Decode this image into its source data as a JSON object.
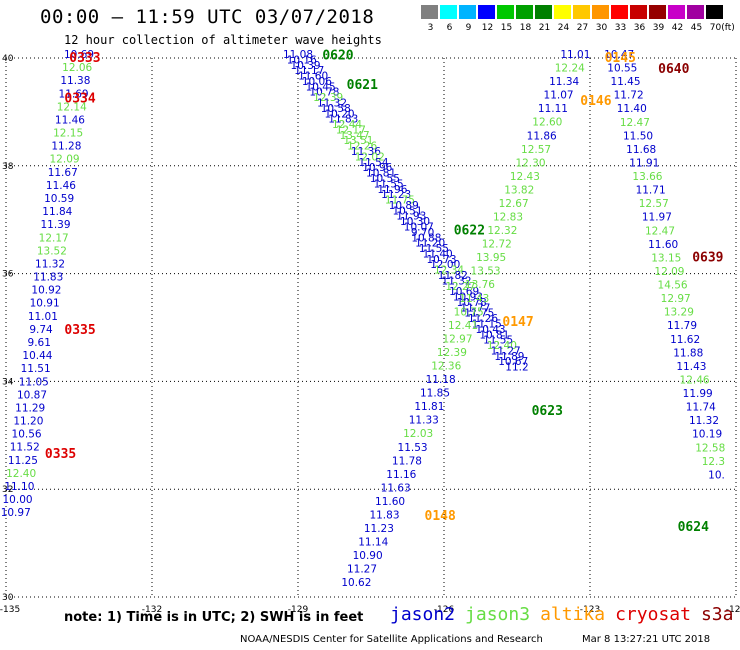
{
  "header": {
    "title": "00:00 – 11:59 UTC 03/07/2018",
    "subtitle": "12 hour collection of altimeter wave heights"
  },
  "color_scale": {
    "unit": "(ft)",
    "labels": [
      "3",
      "6",
      "9",
      "12",
      "15",
      "18",
      "21",
      "24",
      "27",
      "30",
      "33",
      "36",
      "39",
      "42",
      "45",
      "70"
    ],
    "colors": [
      "#808080",
      "#00ffff",
      "#00b4ff",
      "#0000ff",
      "#00c800",
      "#00a000",
      "#008000",
      "#ffff00",
      "#ffc800",
      "#ff9600",
      "#ff0000",
      "#c80000",
      "#960000",
      "#c800c8",
      "#a000a0",
      "#000000"
    ]
  },
  "sat_colors": {
    "jason2": "#0000cc",
    "jason3": "#66dd44",
    "altika": "#ff9900",
    "cryosat": "#dd0000",
    "s3a": "#8b0000",
    "pass_green": "#008000"
  },
  "chart_data": {
    "type": "scatter",
    "x_range": [
      -135,
      -120
    ],
    "y_range": [
      30,
      40
    ],
    "x_ticks": [
      "-135",
      "-132",
      "-129",
      "-126",
      "-123",
      "-120"
    ],
    "y_ticks": [
      "40",
      "38",
      "36",
      "34",
      "32",
      "30"
    ],
    "grid": true,
    "passes": [
      {
        "label": "0333",
        "sat": "cryosat",
        "lon": -133.7,
        "lat": 40.0
      },
      {
        "label": "0334",
        "sat": "cryosat",
        "lon": -133.8,
        "lat": 39.25
      },
      {
        "label": "0335",
        "sat": "cryosat",
        "lon": -133.8,
        "lat": 34.95
      },
      {
        "label": "0335",
        "sat": "cryosat",
        "lon": -134.2,
        "lat": 32.65
      },
      {
        "label": "0620",
        "sat": "pass_green",
        "lon": -128.5,
        "lat": 40.05
      },
      {
        "label": "0621",
        "sat": "pass_green",
        "lon": -128.0,
        "lat": 39.5
      },
      {
        "label": "0622",
        "sat": "pass_green",
        "lon": -125.8,
        "lat": 36.8
      },
      {
        "label": "0623",
        "sat": "pass_green",
        "lon": -124.2,
        "lat": 33.45
      },
      {
        "label": "0624",
        "sat": "pass_green",
        "lon": -121.2,
        "lat": 31.3
      },
      {
        "label": "0145",
        "sat": "altika",
        "lon": -122.7,
        "lat": 40.0
      },
      {
        "label": "0146",
        "sat": "altika",
        "lon": -123.2,
        "lat": 39.2
      },
      {
        "label": "0147",
        "sat": "altika",
        "lon": -124.8,
        "lat": 35.1
      },
      {
        "label": "0148",
        "sat": "altika",
        "lon": -126.4,
        "lat": 31.5
      },
      {
        "label": "0640",
        "sat": "s3a",
        "lon": -121.6,
        "lat": 39.8
      },
      {
        "label": "0639",
        "sat": "s3a",
        "lon": -120.9,
        "lat": 36.3
      }
    ],
    "tracks": [
      {
        "sat": "cryosat",
        "lat_start": 40.0,
        "lat_end": 31.5,
        "lon_start": -133.5,
        "lon_end": -134.8,
        "values": [
          "10.69",
          "12.06",
          "11.38",
          "11.69",
          "12.14",
          "11.46",
          "12.15",
          "11.28",
          "12.09",
          "11.67",
          "11.46",
          "10.59",
          "11.84",
          "11.39",
          "12.17",
          "13.52",
          "11.32",
          "11.83",
          "10.92",
          "10.91",
          "11.01",
          "9.74",
          "9.61",
          "10.44",
          "11.51",
          "11.05",
          "10.87",
          "11.29",
          "11.20",
          "10.56",
          "11.52",
          "11.25",
          "12.40",
          "11.10",
          "10.00",
          "10.97"
        ],
        "sats": [
          "jason2",
          "jason3",
          "jason2",
          "jason2",
          "jason3",
          "jason2",
          "jason3",
          "jason2",
          "jason3",
          "jason2",
          "jason2",
          "jason2",
          "jason2",
          "jason2",
          "jason3",
          "jason3",
          "jason2",
          "jason2",
          "jason2",
          "jason2",
          "jason2",
          "jason2",
          "jason2",
          "jason2",
          "jason2",
          "jason2",
          "jason2",
          "jason2",
          "jason2",
          "jason2",
          "jason2",
          "jason2",
          "jason3",
          "jason2",
          "jason2",
          "jason2"
        ]
      },
      {
        "sat": "jason2",
        "lat_start": 40.0,
        "lat_end": 34.2,
        "lon_start": -129.0,
        "lon_end": -124.5,
        "values": [
          "11.08",
          "10.16",
          "10.39",
          "11.17",
          "11.60",
          "10.06",
          "10.45",
          "10.78",
          "12.39",
          "11.32",
          "10.58",
          "10.20",
          "11.83",
          "12.44",
          "12.17",
          "13.47",
          "13.51",
          "12.26",
          "11.36",
          "12.02",
          "11.54",
          "10.96",
          "10.81",
          "10.55",
          "11.55",
          "11.96",
          "11.23",
          "11.75",
          "10.89",
          "10.51",
          "11.93",
          "10.30",
          "10.07",
          "9.70",
          "10.88",
          "11.20",
          "11.55",
          "11.40",
          "10.73",
          "12.00",
          "12.34",
          "11.82",
          "11.32",
          "12.27",
          "10.69",
          "10.93",
          "10.78",
          "11.77",
          "11.75",
          "11.26",
          "11.15",
          "10.43",
          "10.81",
          "11.55",
          "12.40",
          "11.27",
          "11.89",
          "10.67",
          "11.2"
        ],
        "sats": [
          "jason2",
          "jason2",
          "jason2",
          "jason2",
          "jason2",
          "jason2",
          "jason2",
          "jason2",
          "jason3",
          "jason2",
          "jason2",
          "jason2",
          "jason2",
          "jason3",
          "jason3",
          "jason3",
          "jason3",
          "jason3",
          "jason2",
          "jason3",
          "jason2",
          "jason2",
          "jason2",
          "jason2",
          "jason2",
          "jason2",
          "jason2",
          "jason3",
          "jason2",
          "jason2",
          "jason2",
          "jason2",
          "jason2",
          "jason2",
          "jason2",
          "jason2",
          "jason2",
          "jason2",
          "jason2",
          "jason2",
          "jason3",
          "jason2",
          "jason2",
          "jason3",
          "jason2",
          "jason2",
          "jason2",
          "jason2",
          "jason2",
          "jason2",
          "jason2",
          "jason2",
          "jason2",
          "jason2",
          "jason3",
          "jason2",
          "jason2",
          "jason2",
          "jason2"
        ]
      },
      {
        "sat": "altika",
        "lat_start": 40.0,
        "lat_end": 30.2,
        "lon_start": -123.3,
        "lon_end": -127.8,
        "values": [
          "11.01",
          "12.24",
          "11.34",
          "11.07",
          "11.11",
          "12.60",
          "11.86",
          "12.57",
          "12.30",
          "12.43",
          "13.82",
          "12.67",
          "12.83",
          "12.32",
          "12.72",
          "13.95",
          "13.53",
          "13.76",
          "11.43",
          "10.75",
          "12.41",
          "12.97",
          "12.39",
          "12.36",
          "11.18",
          "11.85",
          "11.81",
          "11.33",
          "12.03",
          "11.53",
          "11.78",
          "11.16",
          "11.63",
          "11.60",
          "11.83",
          "11.23",
          "11.14",
          "10.90",
          "11.27",
          "10.62"
        ],
        "sats": [
          "jason2",
          "jason3",
          "jason2",
          "jason2",
          "jason2",
          "jason3",
          "jason2",
          "jason3",
          "jason3",
          "jason3",
          "jason3",
          "jason3",
          "jason3",
          "jason3",
          "jason3",
          "jason3",
          "jason3",
          "jason3",
          "jason3",
          "jason3",
          "jason3",
          "jason3",
          "jason3",
          "jason3",
          "jason2",
          "jason2",
          "jason2",
          "jason2",
          "jason3",
          "jason2",
          "jason2",
          "jason2",
          "jason2",
          "jason2",
          "jason2",
          "jason2",
          "jason2",
          "jason2",
          "jason2",
          "jason2"
        ]
      },
      {
        "sat": "s3a",
        "lat_start": 40.0,
        "lat_end": 32.2,
        "lon_start": -122.4,
        "lon_end": -120.4,
        "values": [
          "10.47",
          "10.55",
          "11.45",
          "11.72",
          "11.40",
          "12.47",
          "11.50",
          "11.68",
          "11.91",
          "13.66",
          "11.71",
          "12.57",
          "11.97",
          "12.47",
          "11.60",
          "13.15",
          "12.09",
          "14.56",
          "12.97",
          "13.29",
          "11.79",
          "11.62",
          "11.88",
          "11.43",
          "12.46",
          "11.99",
          "11.74",
          "11.32",
          "10.19",
          "12.58",
          "12.3",
          "10."
        ],
        "sats": [
          "jason2",
          "jason2",
          "jason2",
          "jason2",
          "jason2",
          "jason3",
          "jason2",
          "jason2",
          "jason2",
          "jason3",
          "jason2",
          "jason3",
          "jason2",
          "jason3",
          "jason2",
          "jason3",
          "jason3",
          "jason3",
          "jason3",
          "jason3",
          "jason2",
          "jason2",
          "jason2",
          "jason2",
          "jason3",
          "jason2",
          "jason2",
          "jason2",
          "jason2",
          "jason3",
          "jason3",
          "jason2"
        ]
      }
    ]
  },
  "footer": {
    "note": "note: 1) Time is in UTC; 2) SWH is in feet",
    "satellites": [
      {
        "name": "jason2",
        "key": "jason2"
      },
      {
        "name": "jason3",
        "key": "jason3"
      },
      {
        "name": "altika",
        "key": "altika"
      },
      {
        "name": "cryosat",
        "key": "cryosat"
      },
      {
        "name": "s3a",
        "key": "s3a"
      }
    ],
    "credit": "NOAA/NESDIS Center for Satellite Applications and Research",
    "timestamp": "Mar  8 13:27:21 UTC 2018"
  }
}
